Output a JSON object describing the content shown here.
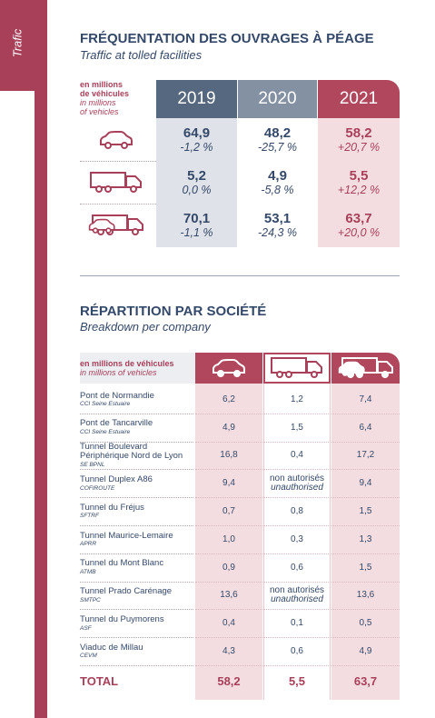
{
  "sidebar": {
    "label": "Trafic"
  },
  "section1": {
    "title": "FRÉQUENTATION DES OUVRAGES À PÉAGE",
    "subtitle": "Traffic at tolled facilities",
    "unit_fr": [
      "en millions",
      "de véhicules"
    ],
    "unit_en": [
      "in millions",
      "of vehicles"
    ],
    "years": [
      "2019",
      "2020",
      "2021"
    ],
    "rows": [
      {
        "icon": "car",
        "cells": [
          [
            "64,9",
            "-1,2 %"
          ],
          [
            "48,2",
            "-25,7 %"
          ],
          [
            "58,2",
            "+20,7 %"
          ]
        ]
      },
      {
        "icon": "truck",
        "cells": [
          [
            "5,2",
            "0,0 %"
          ],
          [
            "4,9",
            "-5,8 %"
          ],
          [
            "5,5",
            "+12,2 %"
          ]
        ]
      },
      {
        "icon": "both",
        "cells": [
          [
            "70,1",
            "-1,1 %"
          ],
          [
            "53,1",
            "-24,3 %"
          ],
          [
            "63,7",
            "+20,0 %"
          ]
        ]
      }
    ]
  },
  "section2": {
    "title": "RÉPARTITION PAR SOCIÉTÉ",
    "subtitle": "Breakdown per company",
    "unit_fr": "en millions de véhicules",
    "unit_en": "in millions of vehicles",
    "rows": [
      {
        "name": "Pont de Normandie",
        "company": "CCI Seine Estuaire",
        "car": "6,2",
        "truck": "1,2",
        "all": "7,4"
      },
      {
        "name": "Pont de Tancarville",
        "company": "CCI Seine Estuaire",
        "car": "4,9",
        "truck": "1,5",
        "all": "6,4"
      },
      {
        "name": "Tunnel Boulevard Périphérique Nord de Lyon",
        "company": "SE BPNL",
        "car": "16,8",
        "truck": "0,4",
        "all": "17,2"
      },
      {
        "name": "Tunnel Duplex A86",
        "company": "COFIROUTE",
        "car": "9,4",
        "truck": "non autorisés",
        "truck_note": "unauthorised",
        "all": "9,4"
      },
      {
        "name": "Tunnel du Fréjus",
        "company": "SFTRF",
        "car": "0,7",
        "truck": "0,8",
        "all": "1,5"
      },
      {
        "name": "Tunnel Maurice-Lemaire",
        "company": "APRR",
        "car": "1,0",
        "truck": "0,3",
        "all": "1,3"
      },
      {
        "name": "Tunnel du Mont Blanc",
        "company": "ATMB",
        "car": "0,9",
        "truck": "0,6",
        "all": "1,5"
      },
      {
        "name": "Tunnel Prado Carénage",
        "company": "SMTPC",
        "car": "13,6",
        "truck": "non autorisés",
        "truck_note": "unauthorised",
        "all": "13,6"
      },
      {
        "name": "Tunnel du Puymorens",
        "company": "ASF",
        "car": "0,4",
        "truck": "0,1",
        "all": "0,5"
      },
      {
        "name": "Viaduc de Millau",
        "company": "CEVM",
        "car": "4,3",
        "truck": "0,6",
        "all": "4,9"
      }
    ],
    "total": {
      "label": "TOTAL",
      "car": "58,2",
      "truck": "5,5",
      "all": "63,7"
    }
  }
}
